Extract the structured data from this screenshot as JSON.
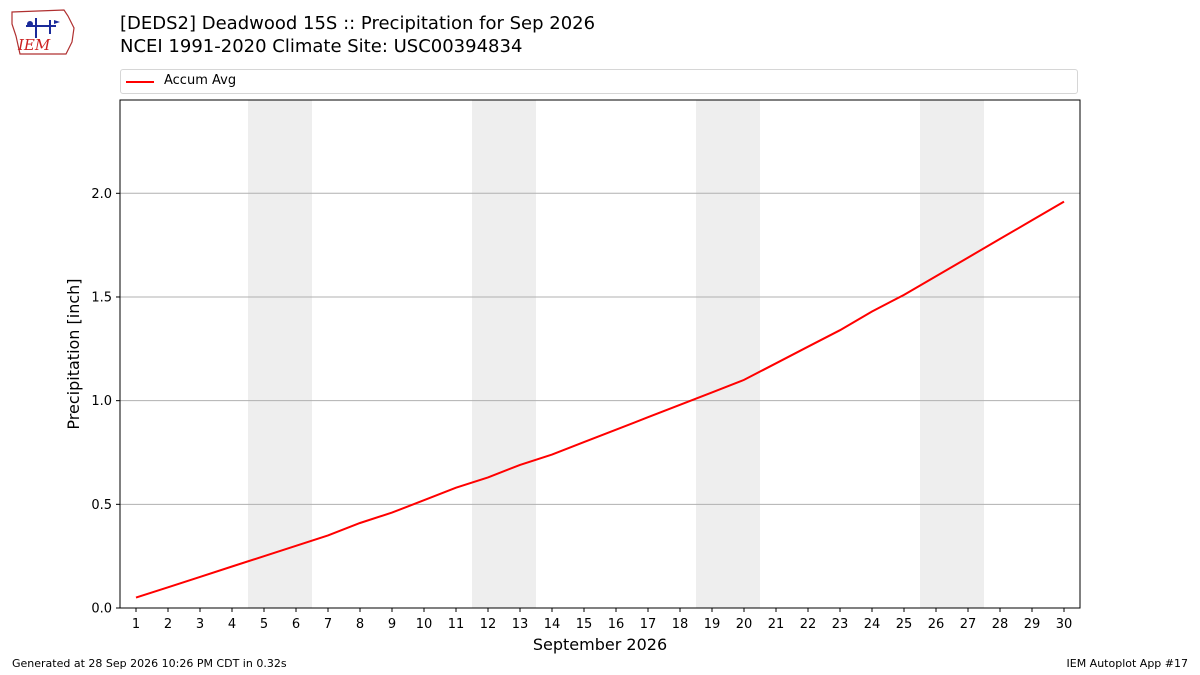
{
  "title_line1": "[DEDS2] Deadwood 15S :: Precipitation for Sep 2026",
  "title_line2": "NCEI 1991-2020 Climate Site: USC00394834",
  "logo_text": "IEM",
  "footer_left": "Generated at 28 Sep 2026 10:26 PM CDT in 0.32s",
  "footer_right": "IEM Autoplot App #17",
  "colors": {
    "line": "#ff0000",
    "weekend_band": "#eeeeee",
    "grid": "#b0b0b0"
  },
  "chart_data": {
    "type": "line",
    "xlabel": "September 2026",
    "ylabel": "Precipitation [inch]",
    "xlim": [
      0.5,
      30.5
    ],
    "ylim": [
      0,
      2.45
    ],
    "yticks": [
      0.0,
      0.5,
      1.0,
      1.5,
      2.0
    ],
    "ytick_labels": [
      "0.0",
      "0.5",
      "1.0",
      "1.5",
      "2.0"
    ],
    "grid": "horizontal",
    "legend_position": "top",
    "weekend_days": [
      5,
      6,
      12,
      13,
      19,
      20,
      26,
      27
    ],
    "series": [
      {
        "name": "Accum Avg",
        "color": "#ff0000",
        "x": [
          1,
          2,
          3,
          4,
          5,
          6,
          7,
          8,
          9,
          10,
          11,
          12,
          13,
          14,
          15,
          16,
          17,
          18,
          19,
          20,
          21,
          22,
          23,
          24,
          25,
          26,
          27,
          28,
          29,
          30
        ],
        "y": [
          0.05,
          0.1,
          0.15,
          0.2,
          0.25,
          0.3,
          0.35,
          0.41,
          0.46,
          0.52,
          0.58,
          0.63,
          0.69,
          0.74,
          0.8,
          0.86,
          0.92,
          0.98,
          1.04,
          1.1,
          1.18,
          1.26,
          1.34,
          1.43,
          1.51,
          1.6,
          1.69,
          1.78,
          1.87,
          1.96
        ]
      }
    ]
  }
}
